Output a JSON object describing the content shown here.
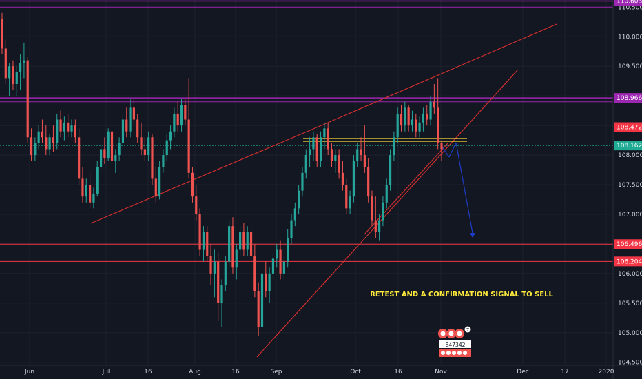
{
  "chart_data": {
    "type": "candlestick",
    "x_ticks": [
      "Jun",
      "Jul",
      "16",
      "Aug",
      "16",
      "Sep",
      "Oct",
      "16",
      "Nov",
      "Dec",
      "17",
      "2020"
    ],
    "y_ticks": [
      "110.000",
      "109.500",
      "109.000",
      "108.500",
      "108.000",
      "107.500",
      "107.000",
      "106.500",
      "106.000",
      "105.500",
      "105.000",
      "104.500"
    ],
    "ylim": [
      104.45,
      110.62
    ],
    "colors": {
      "up": "#26a69a",
      "down": "#ef5350"
    },
    "price_labels": [
      {
        "value": 110.603,
        "text": "110.603",
        "color": "#9c27b0"
      },
      {
        "value": 108.966,
        "text": "108.966",
        "color": "#9c27b0"
      },
      {
        "value": 108.472,
        "text": "108.472",
        "color": "#f23645"
      },
      {
        "value": 108.162,
        "text": "108.162",
        "color": "#22ab94"
      },
      {
        "value": 106.496,
        "text": "106.496",
        "color": "#f23645"
      },
      {
        "value": 106.204,
        "text": "106.204",
        "color": "#f23645"
      }
    ],
    "extra_ticks": [
      "110.500"
    ],
    "annotation": "RETEST AND A CONFIRMATION SIGNAL TO SELL",
    "logo_digits": "847342",
    "logo_badge": "7",
    "candles": [
      [
        110.3,
        110.4,
        109.7,
        109.8
      ],
      [
        109.8,
        109.95,
        109.2,
        109.3
      ],
      [
        109.3,
        109.55,
        109.0,
        109.5
      ],
      [
        109.5,
        109.6,
        109.1,
        109.2
      ],
      [
        109.2,
        109.5,
        109.0,
        109.4
      ],
      [
        109.4,
        109.7,
        109.1,
        109.55
      ],
      [
        109.55,
        109.9,
        109.3,
        109.6
      ],
      [
        109.6,
        109.65,
        108.2,
        108.3
      ],
      [
        108.3,
        108.45,
        107.9,
        108.0
      ],
      [
        108.0,
        108.3,
        107.9,
        108.2
      ],
      [
        108.2,
        108.5,
        108.1,
        108.4
      ],
      [
        108.4,
        108.6,
        108.2,
        108.3
      ],
      [
        108.3,
        108.5,
        108.0,
        108.1
      ],
      [
        108.1,
        108.35,
        108.0,
        108.3
      ],
      [
        108.3,
        108.5,
        108.05,
        108.2
      ],
      [
        108.2,
        108.7,
        108.1,
        108.6
      ],
      [
        108.6,
        108.75,
        108.3,
        108.4
      ],
      [
        108.4,
        108.65,
        108.25,
        108.55
      ],
      [
        108.55,
        108.7,
        108.3,
        108.4
      ],
      [
        108.4,
        108.6,
        108.3,
        108.5
      ],
      [
        108.5,
        108.6,
        108.2,
        108.3
      ],
      [
        108.3,
        108.45,
        107.5,
        107.6
      ],
      [
        107.6,
        107.8,
        107.2,
        107.3
      ],
      [
        107.3,
        107.6,
        107.2,
        107.5
      ],
      [
        107.5,
        107.7,
        107.1,
        107.2
      ],
      [
        107.2,
        107.45,
        107.1,
        107.35
      ],
      [
        107.35,
        107.9,
        107.3,
        107.8
      ],
      [
        107.8,
        108.2,
        107.7,
        108.1
      ],
      [
        108.1,
        108.3,
        107.85,
        107.95
      ],
      [
        107.95,
        108.45,
        107.9,
        108.4
      ],
      [
        108.4,
        108.55,
        107.8,
        107.9
      ],
      [
        107.9,
        108.1,
        107.7,
        108.0
      ],
      [
        108.0,
        108.3,
        107.9,
        108.2
      ],
      [
        108.2,
        108.7,
        108.1,
        108.6
      ],
      [
        108.6,
        108.8,
        108.3,
        108.4
      ],
      [
        108.4,
        108.95,
        108.3,
        108.8
      ],
      [
        108.8,
        108.95,
        108.5,
        108.6
      ],
      [
        108.6,
        108.7,
        108.2,
        108.3
      ],
      [
        108.3,
        108.55,
        108.0,
        108.1
      ],
      [
        108.1,
        108.3,
        107.9,
        108.0
      ],
      [
        108.0,
        108.4,
        107.9,
        108.3
      ],
      [
        108.3,
        108.35,
        107.5,
        107.6
      ],
      [
        107.6,
        107.8,
        107.2,
        107.3
      ],
      [
        107.3,
        107.9,
        107.25,
        107.8
      ],
      [
        107.8,
        108.1,
        107.7,
        108.0
      ],
      [
        108.0,
        108.35,
        107.9,
        108.25
      ],
      [
        108.25,
        108.5,
        108.1,
        108.4
      ],
      [
        108.4,
        108.8,
        108.3,
        108.7
      ],
      [
        108.7,
        108.9,
        108.4,
        108.5
      ],
      [
        108.5,
        108.95,
        108.4,
        108.85
      ],
      [
        108.85,
        108.95,
        108.5,
        108.6
      ],
      [
        108.6,
        109.3,
        107.6,
        107.7
      ],
      [
        107.7,
        107.8,
        107.2,
        107.3
      ],
      [
        107.3,
        107.5,
        106.9,
        107.0
      ],
      [
        107.0,
        107.1,
        106.3,
        106.4
      ],
      [
        106.4,
        106.8,
        106.2,
        106.7
      ],
      [
        106.7,
        106.8,
        106.2,
        106.3
      ],
      [
        106.3,
        106.5,
        105.8,
        106.0
      ],
      [
        106.0,
        106.4,
        105.6,
        106.2
      ],
      [
        106.2,
        106.35,
        105.2,
        105.5
      ],
      [
        105.5,
        105.9,
        105.1,
        105.8
      ],
      [
        105.8,
        106.3,
        105.7,
        106.2
      ],
      [
        106.2,
        106.9,
        106.1,
        106.8
      ],
      [
        106.8,
        106.95,
        106.0,
        106.1
      ],
      [
        106.1,
        106.5,
        105.9,
        106.4
      ],
      [
        106.4,
        106.8,
        106.3,
        106.7
      ],
      [
        106.7,
        106.85,
        106.3,
        106.4
      ],
      [
        106.4,
        106.8,
        106.3,
        106.7
      ],
      [
        106.7,
        106.8,
        106.2,
        106.3
      ],
      [
        106.3,
        106.5,
        105.6,
        105.7
      ],
      [
        105.7,
        105.85,
        104.95,
        105.1
      ],
      [
        105.1,
        106.1,
        104.8,
        106.0
      ],
      [
        106.0,
        106.2,
        105.6,
        105.7
      ],
      [
        105.7,
        106.1,
        105.5,
        106.0
      ],
      [
        106.0,
        106.35,
        105.9,
        106.25
      ],
      [
        106.25,
        106.5,
        106.1,
        106.4
      ],
      [
        106.4,
        106.55,
        105.9,
        106.0
      ],
      [
        106.0,
        106.3,
        105.9,
        106.2
      ],
      [
        106.2,
        106.75,
        106.1,
        106.6
      ],
      [
        106.6,
        107.0,
        106.5,
        106.9
      ],
      [
        106.9,
        107.2,
        106.8,
        107.1
      ],
      [
        107.1,
        107.5,
        107.0,
        107.4
      ],
      [
        107.4,
        107.8,
        107.3,
        107.7
      ],
      [
        107.7,
        108.1,
        107.6,
        108.0
      ],
      [
        108.0,
        108.3,
        107.8,
        108.1
      ],
      [
        108.1,
        108.4,
        107.9,
        108.3
      ],
      [
        108.3,
        108.35,
        107.8,
        107.9
      ],
      [
        107.9,
        108.4,
        107.8,
        108.3
      ],
      [
        108.3,
        108.55,
        108.1,
        108.45
      ],
      [
        108.45,
        108.55,
        108.0,
        108.1
      ],
      [
        108.1,
        108.2,
        107.8,
        107.9
      ],
      [
        107.9,
        108.1,
        107.7,
        108.0
      ],
      [
        108.0,
        108.1,
        107.6,
        107.7
      ],
      [
        107.7,
        107.9,
        107.4,
        107.5
      ],
      [
        107.5,
        107.6,
        107.0,
        107.1
      ],
      [
        107.1,
        107.4,
        107.0,
        107.3
      ],
      [
        107.3,
        108.0,
        107.2,
        107.9
      ],
      [
        107.9,
        108.2,
        107.8,
        108.1
      ],
      [
        108.1,
        108.3,
        107.9,
        108.0
      ],
      [
        108.0,
        108.5,
        107.7,
        107.8
      ],
      [
        107.8,
        107.95,
        107.2,
        107.3
      ],
      [
        107.3,
        107.4,
        106.8,
        106.9
      ],
      [
        106.9,
        107.3,
        106.6,
        106.7
      ],
      [
        106.7,
        107.0,
        106.55,
        106.9
      ],
      [
        106.9,
        107.3,
        106.8,
        107.2
      ],
      [
        107.2,
        107.6,
        107.1,
        107.5
      ],
      [
        107.5,
        108.1,
        107.4,
        108.0
      ],
      [
        108.0,
        108.4,
        107.9,
        108.3
      ],
      [
        108.3,
        108.8,
        108.2,
        108.7
      ],
      [
        108.7,
        108.85,
        108.4,
        108.5
      ],
      [
        108.5,
        108.9,
        108.4,
        108.8
      ],
      [
        108.8,
        108.85,
        108.4,
        108.5
      ],
      [
        108.5,
        108.75,
        108.4,
        108.6
      ],
      [
        108.6,
        108.7,
        108.3,
        108.4
      ],
      [
        108.4,
        108.65,
        108.3,
        108.55
      ],
      [
        108.55,
        108.8,
        108.4,
        108.7
      ],
      [
        108.7,
        108.85,
        108.5,
        108.6
      ],
      [
        108.6,
        109.0,
        108.5,
        108.9
      ],
      [
        108.9,
        109.2,
        108.7,
        108.8
      ],
      [
        108.8,
        109.3,
        108.1,
        108.2
      ],
      [
        108.2,
        108.25,
        107.9,
        108.1
      ]
    ],
    "lines": [
      {
        "color": "#d32f2f",
        "width": 1.2,
        "p": [
          [
            132,
            324
          ],
          [
            469,
            181
          ]
        ]
      },
      {
        "color": "#d32f2f",
        "width": 1.2,
        "p": [
          [
            469,
            181
          ],
          [
            808,
            35
          ]
        ]
      },
      {
        "color": "#d32f2f",
        "width": 1.2,
        "p": [
          [
            373,
            518
          ],
          [
            752,
            101
          ]
        ]
      },
      {
        "color": "#d32f2f",
        "width": 1.2,
        "p": [
          [
            529,
            340
          ],
          [
            650,
            208
          ]
        ]
      },
      {
        "color": "#fdd835",
        "width": 1.2,
        "p": [
          [
            440,
            201
          ],
          [
            678,
            201
          ]
        ]
      },
      {
        "color": "#fdd835",
        "width": 1.2,
        "p": [
          [
            440,
            205
          ],
          [
            678,
            205
          ]
        ]
      },
      {
        "color": "#1e3cc8",
        "width": 1.2,
        "p": [
          [
            641,
            212
          ],
          [
            652,
            228
          ]
        ]
      },
      {
        "color": "#1e3cc8",
        "width": 1.2,
        "p": [
          [
            652,
            228
          ],
          [
            662,
            207
          ]
        ]
      },
      {
        "color": "#1e3cc8",
        "width": 1.2,
        "p": [
          [
            662,
            207
          ],
          [
            686,
            338
          ]
        ]
      }
    ],
    "hlines": [
      {
        "value": 110.603,
        "color": "#9c27b0",
        "width": 1.5,
        "dash": ""
      },
      {
        "value": 110.5,
        "color": "#9c27b0",
        "width": 1,
        "dash": ""
      },
      {
        "value": 108.966,
        "color": "#9c27b0",
        "width": 1.5,
        "dash": ""
      },
      {
        "value": 108.9,
        "color": "#9c27b0",
        "width": 1,
        "dash": ""
      },
      {
        "value": 108.472,
        "color": "#f23645",
        "width": 1,
        "dash": ""
      },
      {
        "value": 108.162,
        "color": "#22ab94",
        "width": 1,
        "dash": "2,2"
      },
      {
        "value": 106.496,
        "color": "#f23645",
        "width": 1,
        "dash": ""
      },
      {
        "value": 106.204,
        "color": "#f23645",
        "width": 1,
        "dash": ""
      }
    ]
  }
}
